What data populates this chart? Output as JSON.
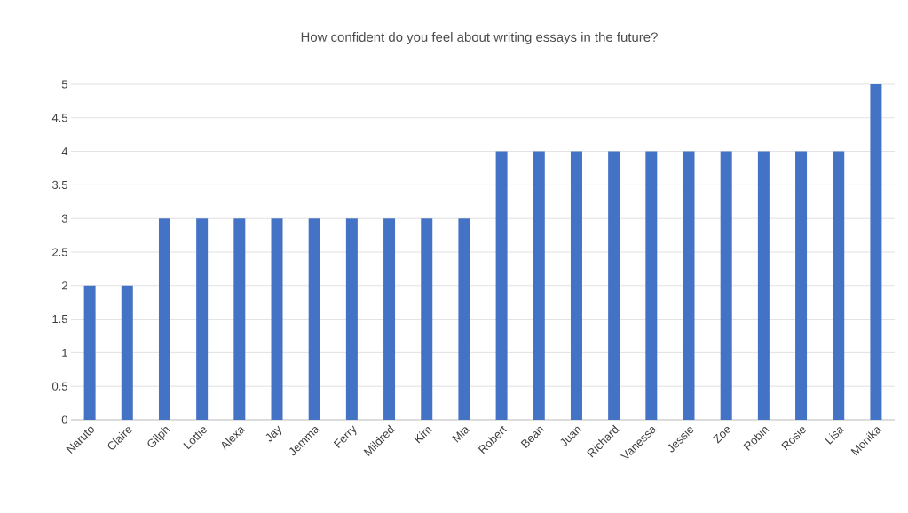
{
  "chart_data": {
    "type": "bar",
    "title": "How confident do you feel about writing essays in the future?",
    "categories": [
      "Naruto",
      "Claire",
      "Gilph",
      "Lottie",
      "Alexa",
      "Jay",
      "Jemma",
      "Ferry",
      "Mildred",
      "Kim",
      "Mia",
      "Robert",
      "Bean",
      "Juan",
      "Richard",
      "Vanessa",
      "Jessie",
      "Zoe",
      "Robin",
      "Rosie",
      "Lisa",
      "Monika"
    ],
    "values": [
      2,
      2,
      3,
      3,
      3,
      3,
      3,
      3,
      3,
      3,
      3,
      4,
      4,
      4,
      4,
      4,
      4,
      4,
      4,
      4,
      4,
      5
    ],
    "color": "#4472c4",
    "ylim": [
      0,
      5
    ],
    "yticks": [
      0,
      0.5,
      1,
      1.5,
      2,
      2.5,
      3,
      3.5,
      4,
      4.5,
      5
    ],
    "grid": "y"
  }
}
